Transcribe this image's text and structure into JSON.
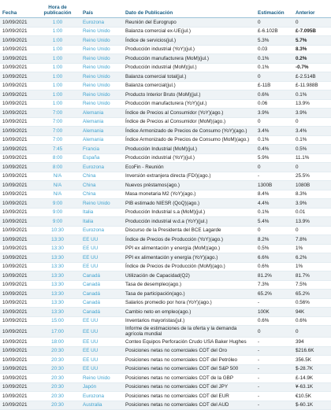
{
  "table": {
    "columns": [
      "Fecha",
      "Hora de publicación",
      "País",
      "Dato de Publicación",
      "Estimación",
      "Anterior"
    ],
    "rows": [
      [
        "10/09/2021",
        "1:00",
        "Eurozona",
        "Reunión del Eurogrupo",
        "0",
        "0"
      ],
      [
        "10/09/2021",
        "1:00",
        "Reino Unido",
        "Balanza comercial ex-UE(jul.)",
        "£-6.102B",
        "£-7.095B"
      ],
      [
        "10/09/2021",
        "1:00",
        "Reino Unido",
        "Índice de servicios(jul.)",
        "5.3%",
        "5.7%"
      ],
      [
        "10/09/2021",
        "1:00",
        "Reino Unido",
        "Producción industrial (YoY)(jul.)",
        "0.03",
        "8.3%"
      ],
      [
        "10/09/2021",
        "1:00",
        "Reino Unido",
        "Producción manufacturera (MoM)(jul.)",
        "0.1%",
        "0.2%"
      ],
      [
        "10/09/2021",
        "1:00",
        "Reino Unido",
        "Producción industrial (MoM)(jul.)",
        "0.1%",
        "-0.7%"
      ],
      [
        "10/09/2021",
        "1:00",
        "Reino Unido",
        "Balanza comercial total(jul.)",
        "0",
        "£-2.514B"
      ],
      [
        "10/09/2021",
        "1:00",
        "Reino Unido",
        "Balanza comercial(jul.)",
        "£-11B",
        "£-11.988B"
      ],
      [
        "10/09/2021",
        "1:00",
        "Reino Unido",
        "Producto Interior Bruto (MoM)(jul.)",
        "0.6%",
        "0.1%"
      ],
      [
        "10/09/2021",
        "1:00",
        "Reino Unido",
        "Producción manufacturera (YoY)(jul.)",
        "0.06",
        "13.9%"
      ],
      [
        "10/09/2021",
        "7:00",
        "Alemania",
        "Índice de Precios al Consumidor (YoY)(ago.)",
        "3.9%",
        "3.9%"
      ],
      [
        "10/09/2021",
        "7:00",
        "Alemania",
        "Índice de Precios al Consumidor (MoM)(ago.)",
        "0",
        "0"
      ],
      [
        "10/09/2021",
        "7:00",
        "Alemania",
        "Índice Armonizado de Precios de Consumo (YoY)(ago.)",
        "3.4%",
        "3.4%"
      ],
      [
        "10/09/2021",
        "7:00",
        "Alemania",
        "Índice Armonizado de Precios de Consumo (MoM)(ago.)",
        "0.1%",
        "0.1%"
      ],
      [
        "10/09/2021",
        "7:45",
        "Francia",
        "Producción Industrial (MoM)(jul.)",
        "0.4%",
        "0.5%"
      ],
      [
        "10/09/2021",
        "8:00",
        "España",
        "Producción industrial (YoY)(jul.)",
        "5.9%",
        "11.1%"
      ],
      [
        "10/09/2021",
        "8:00",
        "Eurozona",
        "EcoFin - Reunión",
        "0",
        "0"
      ],
      [
        "10/09/2021",
        "N/A",
        "China",
        "Inversión extranjera directa (FDI)(ago.)",
        "-",
        "25.5%"
      ],
      [
        "10/09/2021",
        "N/A",
        "China",
        "Nuevos préstamos(ago.)",
        "1300B",
        "1080B"
      ],
      [
        "10/09/2021",
        "N/A",
        "China",
        "Masa monetaria M2 (YoY)(ago.)",
        "8.4%",
        "8.3%"
      ],
      [
        "10/09/2021",
        "9:00",
        "Reino Unido",
        "PIB estimado NIESR (QoQ)(ago.)",
        "4.4%",
        "3.9%"
      ],
      [
        "10/09/2021",
        "9:00",
        "Italia",
        "Producción Industrial s.a (MoM)(jul.)",
        "0.1%",
        "0.01"
      ],
      [
        "10/09/2021",
        "9:00",
        "Italia",
        "Producción industrial w.d.a (YoY)(jul.)",
        "5.4%",
        "13.9%"
      ],
      [
        "10/09/2021",
        "10:30",
        "Eurozona",
        "Discurso de la Presidenta del BCE Lagarde",
        "0",
        "0"
      ],
      [
        "10/09/2021",
        "13:30",
        "EE UU",
        "Índice de Precios de Producción (YoY)(ago.)",
        "8.2%",
        "7.8%"
      ],
      [
        "10/09/2021",
        "13:30",
        "EE UU",
        "PPI ex alimentación y energía (MoM)(ago.)",
        "0.5%",
        "1%"
      ],
      [
        "10/09/2021",
        "13:30",
        "EE UU",
        "PPI ex alimentación y energía (YoY)(ago.)",
        "6.6%",
        "6.2%"
      ],
      [
        "10/09/2021",
        "13:30",
        "EE UU",
        "Índice de Precios de Producción (MoM)(ago.)",
        "0.6%",
        "1%"
      ],
      [
        "10/09/2021",
        "13:30",
        "Canadá",
        "Utilización de Capacidad(Q2)",
        "81.2%",
        "81.7%"
      ],
      [
        "10/09/2021",
        "13:30",
        "Canadá",
        "Tasa de desempleo(ago.)",
        "7.3%",
        "7.5%"
      ],
      [
        "10/09/2021",
        "13:30",
        "Canadá",
        "Tasa de participación(ago.)",
        "65.2%",
        "65.2%"
      ],
      [
        "10/09/2021",
        "13:30",
        "Canadá",
        "Salarios promedio por hora (YoY)(ago.)",
        "-",
        "0.56%"
      ],
      [
        "10/09/2021",
        "13:30",
        "Canadá",
        "Cambio neto en empleo(ago.)",
        "100K",
        "94K"
      ],
      [
        "10/09/2021",
        "15:00",
        "EE UU",
        "Inventarios mayoristas(jul.)",
        "0.6%",
        "0.6%"
      ],
      [
        "10/09/2021",
        "17:00",
        "EE UU",
        "Informe de estimaciones de la oferta y la demanda agrícola mundial",
        "0",
        "0"
      ],
      [
        "10/09/2021",
        "18:00",
        "EE UU",
        "Conteo Equipos Perforación Crudo USA Baker Hughes",
        "-",
        "394"
      ],
      [
        "10/09/2021",
        "20:30",
        "EE UU",
        "Posiciones netas no comerciales COT del Oro",
        "-",
        "$216.6K"
      ],
      [
        "10/09/2021",
        "20:30",
        "EE UU",
        "Posiciones netas no comerciales COT del Petróleo",
        "-",
        "356.5K"
      ],
      [
        "10/09/2021",
        "20:30",
        "EE UU",
        "Posiciones netas no comerciales COT del S&P 500",
        "-",
        "$-28.7K"
      ],
      [
        "10/09/2021",
        "20:30",
        "Reino Unido",
        "Posiciones netas no comerciales COT de la GBP",
        "-",
        "£-14.9K"
      ],
      [
        "10/09/2021",
        "20:30",
        "Japón",
        "Posiciones netas no comerciales COT del JPY",
        "-",
        "¥-63.1K"
      ],
      [
        "10/09/2021",
        "20:30",
        "Eurozona",
        "Posiciones netas no comerciales COT del EUR",
        "-",
        "€10.5K"
      ],
      [
        "10/09/2021",
        "20:30",
        "Australia",
        "Posiciones netas no comerciales COT del AUD",
        "-",
        "$-60.1K"
      ]
    ]
  }
}
